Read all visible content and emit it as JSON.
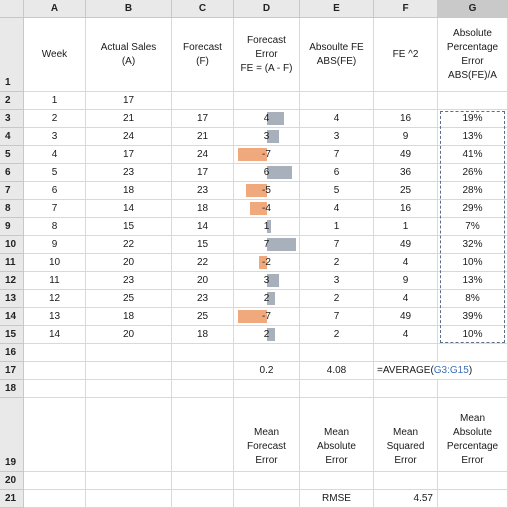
{
  "columns": [
    "A",
    "B",
    "C",
    "D",
    "E",
    "F",
    "G"
  ],
  "header_row": {
    "week": "Week",
    "actual": "Actual Sales\n(A)",
    "forecast": "Forecast\n(F)",
    "fe": "Forecast\nError\nFE = (A - F)",
    "abs_fe": "Absoulte FE\nABS(FE)",
    "fe_sq": "FE ^2",
    "ape": "Absolute\nPercentage\nError\nABS(FE)/A"
  },
  "rows": [
    {
      "week": "1",
      "actual": "17",
      "forecast": "",
      "fe": "",
      "abs_fe": "",
      "fe_sq": "",
      "ape": ""
    },
    {
      "week": "2",
      "actual": "21",
      "forecast": "17",
      "fe": "4",
      "abs_fe": "4",
      "fe_sq": "16",
      "ape": "19%"
    },
    {
      "week": "3",
      "actual": "24",
      "forecast": "21",
      "fe": "3",
      "abs_fe": "3",
      "fe_sq": "9",
      "ape": "13%"
    },
    {
      "week": "4",
      "actual": "17",
      "forecast": "24",
      "fe": "-7",
      "abs_fe": "7",
      "fe_sq": "49",
      "ape": "41%"
    },
    {
      "week": "5",
      "actual": "23",
      "forecast": "17",
      "fe": "6",
      "abs_fe": "6",
      "fe_sq": "36",
      "ape": "26%"
    },
    {
      "week": "6",
      "actual": "18",
      "forecast": "23",
      "fe": "-5",
      "abs_fe": "5",
      "fe_sq": "25",
      "ape": "28%"
    },
    {
      "week": "7",
      "actual": "14",
      "forecast": "18",
      "fe": "-4",
      "abs_fe": "4",
      "fe_sq": "16",
      "ape": "29%"
    },
    {
      "week": "8",
      "actual": "15",
      "forecast": "14",
      "fe": "1",
      "abs_fe": "1",
      "fe_sq": "1",
      "ape": "7%"
    },
    {
      "week": "9",
      "actual": "22",
      "forecast": "15",
      "fe": "7",
      "abs_fe": "7",
      "fe_sq": "49",
      "ape": "32%"
    },
    {
      "week": "10",
      "actual": "20",
      "forecast": "22",
      "fe": "-2",
      "abs_fe": "2",
      "fe_sq": "4",
      "ape": "10%"
    },
    {
      "week": "11",
      "actual": "23",
      "forecast": "20",
      "fe": "3",
      "abs_fe": "3",
      "fe_sq": "9",
      "ape": "13%"
    },
    {
      "week": "12",
      "actual": "25",
      "forecast": "23",
      "fe": "2",
      "abs_fe": "2",
      "fe_sq": "4",
      "ape": "8%"
    },
    {
      "week": "13",
      "actual": "18",
      "forecast": "25",
      "fe": "-7",
      "abs_fe": "7",
      "fe_sq": "49",
      "ape": "39%"
    },
    {
      "week": "14",
      "actual": "20",
      "forecast": "18",
      "fe": "2",
      "abs_fe": "2",
      "fe_sq": "4",
      "ape": "10%"
    }
  ],
  "summary": {
    "mfe": "0.2",
    "mae": "4.08",
    "formula_prefix": "=AVERAGE(",
    "formula_ref": "G3:G15",
    "formula_suffix": ")"
  },
  "labels": {
    "mfe": "Mean\nForecast\nError",
    "mae": "Mean\nAbsolute\nError",
    "mse": "Mean\nSquared\nError",
    "mape": "Mean\nAbsolute\nPercentage\nError"
  },
  "rmse": {
    "label": "RMSE",
    "value": "4.57"
  },
  "colors": {
    "positive_bar": "#a8b0bc",
    "negative_bar": "#f0a97d",
    "selected_column": "G"
  }
}
